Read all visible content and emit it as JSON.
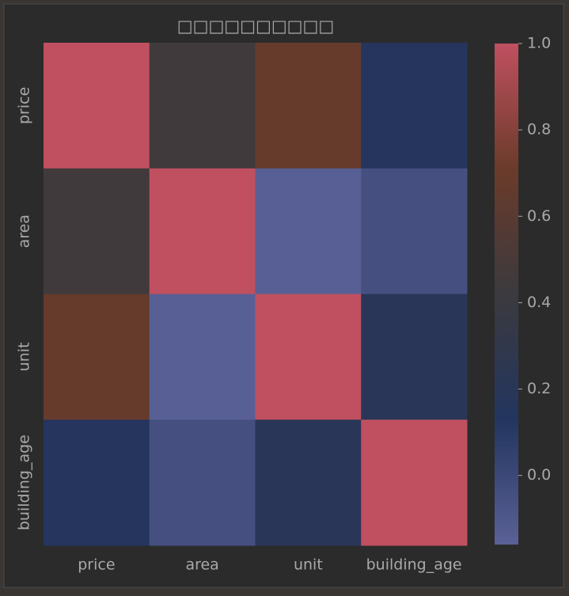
{
  "chart_data": {
    "type": "heatmap",
    "title": "□□□□□□□□□□",
    "x_categories": [
      "price",
      "area",
      "unit",
      "building_age"
    ],
    "y_categories": [
      "price",
      "area",
      "unit",
      "building_age"
    ],
    "values": [
      [
        1,
        0.45,
        0.68,
        0.15
      ],
      [
        0.45,
        1,
        -0.15,
        -0.05
      ],
      [
        0.68,
        -0.15,
        1,
        0.2
      ],
      [
        0.15,
        -0.05,
        0.2,
        1
      ]
    ],
    "clim": [
      -0.16,
      1
    ],
    "colormap": [
      "#5a6196",
      "#23355f",
      "#3b3a3e",
      "#6b3b2a",
      "#c05060"
    ],
    "colorbar_ticks": [
      {
        "value": 0,
        "label": "0.0"
      },
      0.2,
      0.4,
      0.6,
      0.8,
      {
        "value": 1,
        "label": "1.0"
      }
    ]
  }
}
